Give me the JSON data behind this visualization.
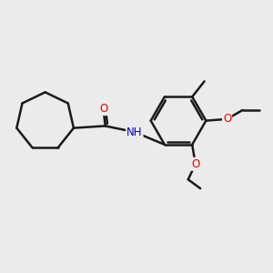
{
  "background_color": "#ebebeb",
  "bond_color": "#1a1a1a",
  "bond_width": 1.8,
  "atom_colors": {
    "O": "#ee0000",
    "N": "#0000cc",
    "C": "#1a1a1a"
  },
  "font_size": 8.5,
  "fig_size": [
    3.0,
    3.0
  ],
  "dpi": 100
}
